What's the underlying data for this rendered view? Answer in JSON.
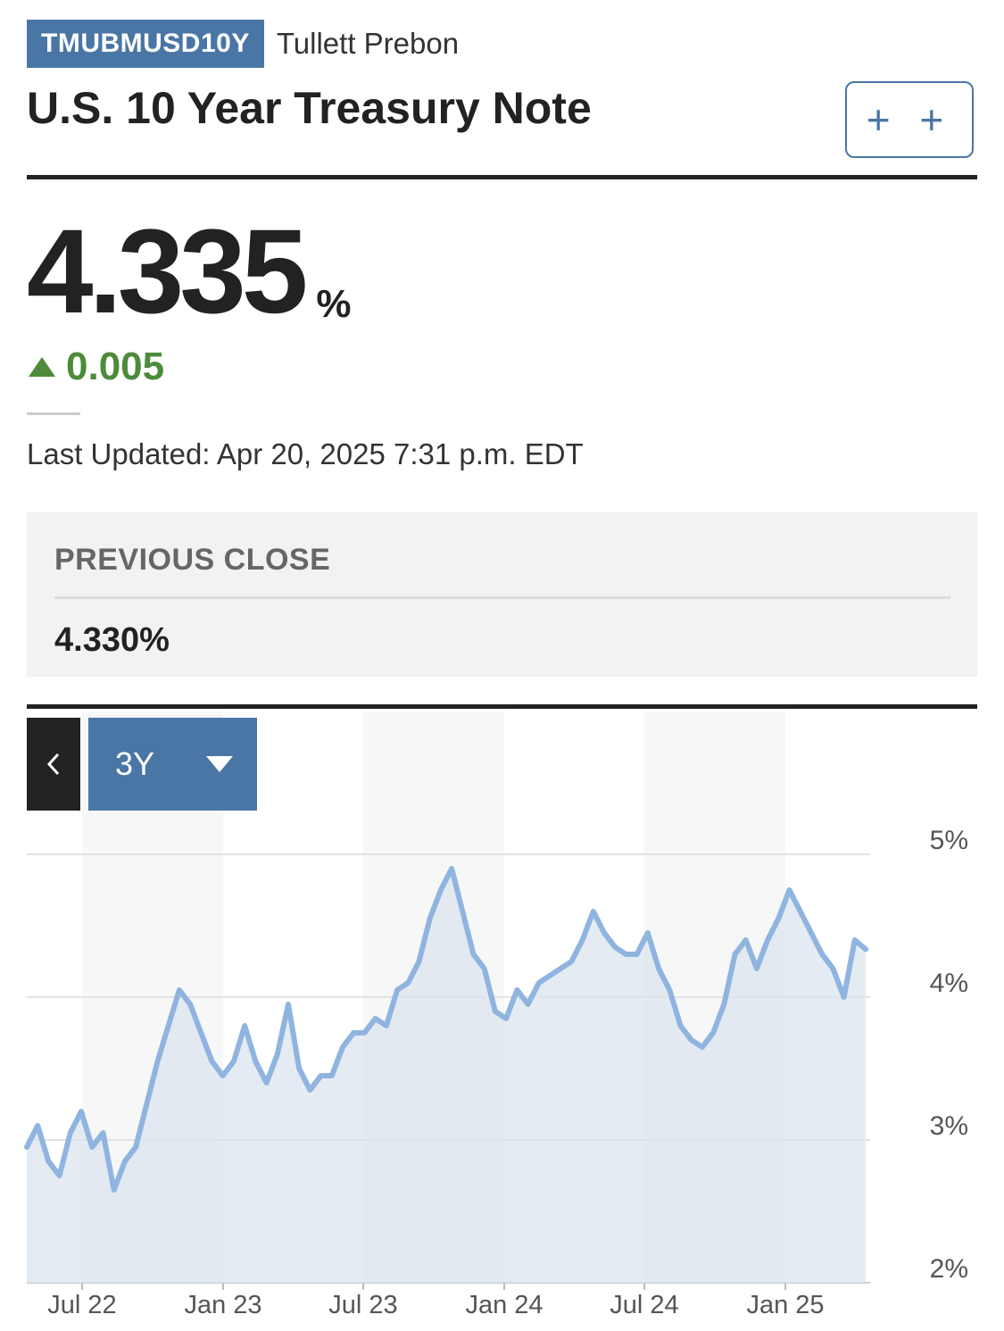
{
  "header": {
    "ticker": "TMUBMUSD10Y",
    "source": "Tullett Prebon",
    "title": "U.S. 10 Year Treasury Note",
    "watchlist_label": "+ +"
  },
  "quote": {
    "price": "4.335",
    "unit": "%",
    "change": "0.005",
    "direction": "up",
    "last_updated": "Last Updated: Apr 20, 2025 7:31 p.m. EDT"
  },
  "previous_close": {
    "label": "PREVIOUS CLOSE",
    "value": "4.330%"
  },
  "chart_controls": {
    "back_label": "‹",
    "range": "3Y"
  },
  "colors": {
    "accent": "#4a76a6",
    "up": "#4d8b3a",
    "line": "#8fb4e0",
    "area": "#dbe4ee"
  },
  "chart_data": {
    "type": "area",
    "title": "",
    "xlabel": "",
    "ylabel": "",
    "x_ticks": [
      "Jul 22",
      "Jan 23",
      "Jul 23",
      "Jan 24",
      "Jul 24",
      "Jan 25"
    ],
    "y_ticks": [
      "5%",
      "4%",
      "3%",
      "2%"
    ],
    "ylim": [
      2,
      5
    ],
    "grid": true,
    "x": [
      "2022-05",
      "2022-05",
      "2022-06",
      "2022-06",
      "2022-06",
      "2022-07",
      "2022-07",
      "2022-07",
      "2022-08",
      "2022-08",
      "2022-08",
      "2022-09",
      "2022-09",
      "2022-09",
      "2022-10",
      "2022-10",
      "2022-11",
      "2022-11",
      "2022-12",
      "2022-12",
      "2022-12",
      "2023-01",
      "2023-01",
      "2023-02",
      "2023-02",
      "2023-03",
      "2023-03",
      "2023-04",
      "2023-04",
      "2023-05",
      "2023-05",
      "2023-06",
      "2023-06",
      "2023-07",
      "2023-07",
      "2023-08",
      "2023-08",
      "2023-09",
      "2023-09",
      "2023-10",
      "2023-10",
      "2023-11",
      "2023-11",
      "2023-12",
      "2023-12",
      "2024-01",
      "2024-01",
      "2024-02",
      "2024-02",
      "2024-03",
      "2024-03",
      "2024-04",
      "2024-04",
      "2024-05",
      "2024-05",
      "2024-06",
      "2024-06",
      "2024-07",
      "2024-07",
      "2024-08",
      "2024-08",
      "2024-09",
      "2024-09",
      "2024-10",
      "2024-10",
      "2024-11",
      "2024-11",
      "2024-12",
      "2024-12",
      "2025-01",
      "2025-01",
      "2025-02",
      "2025-02",
      "2025-03",
      "2025-03",
      "2025-04",
      "2025-04",
      "2025-04"
    ],
    "values": [
      2.95,
      3.1,
      2.85,
      2.75,
      3.05,
      3.2,
      2.95,
      3.05,
      2.65,
      2.85,
      2.95,
      3.25,
      3.55,
      3.8,
      4.05,
      3.95,
      3.75,
      3.55,
      3.45,
      3.55,
      3.8,
      3.55,
      3.4,
      3.6,
      3.95,
      3.5,
      3.35,
      3.45,
      3.45,
      3.65,
      3.75,
      3.75,
      3.85,
      3.8,
      4.05,
      4.1,
      4.25,
      4.55,
      4.75,
      4.9,
      4.6,
      4.3,
      4.2,
      3.9,
      3.85,
      4.05,
      3.95,
      4.1,
      4.15,
      4.2,
      4.25,
      4.4,
      4.6,
      4.45,
      4.35,
      4.3,
      4.3,
      4.45,
      4.2,
      4.05,
      3.8,
      3.7,
      3.65,
      3.75,
      3.95,
      4.3,
      4.4,
      4.2,
      4.4,
      4.55,
      4.75,
      4.6,
      4.45,
      4.3,
      4.2,
      4.0,
      4.4,
      4.335
    ]
  }
}
